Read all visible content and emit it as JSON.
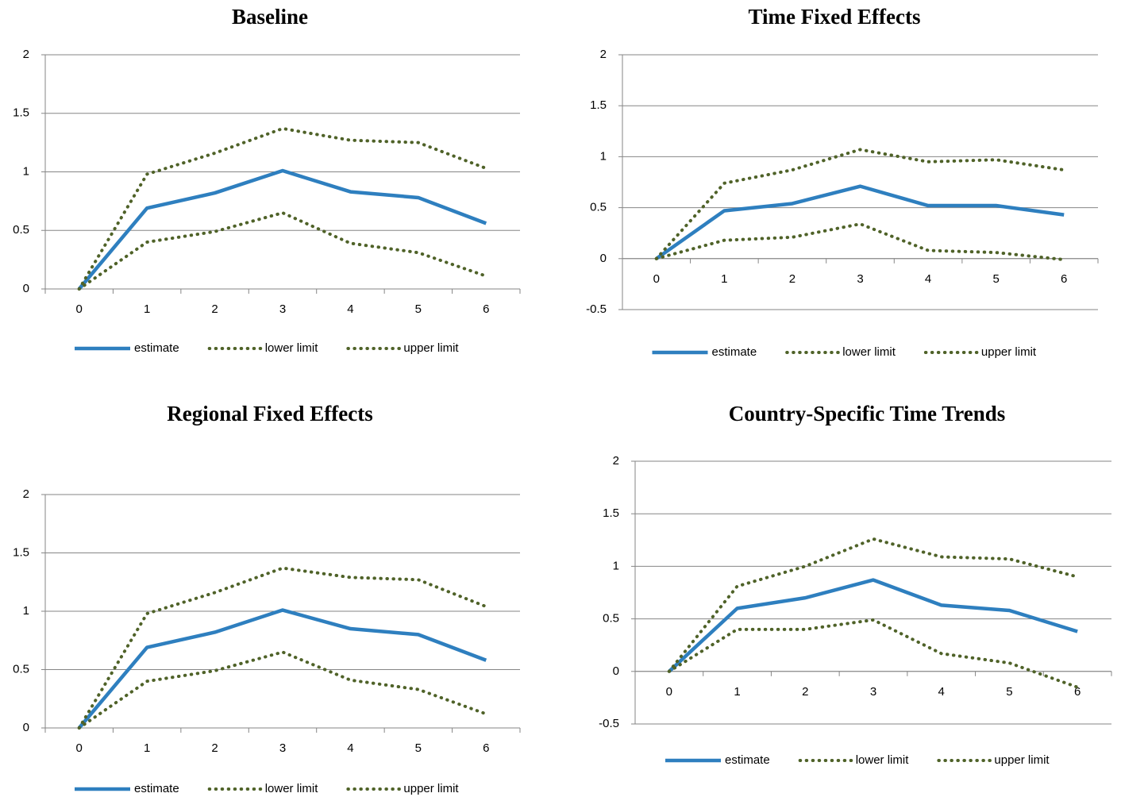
{
  "chart_data": [
    {
      "type": "line",
      "title": "Baseline",
      "categories": [
        "0",
        "1",
        "2",
        "3",
        "4",
        "5",
        "6"
      ],
      "series": [
        {
          "name": "estimate",
          "color": "#2e7fbf",
          "style": "solid",
          "values": [
            0,
            0.69,
            0.82,
            1.01,
            0.83,
            0.78,
            0.56
          ]
        },
        {
          "name": "lower limit",
          "color": "#4f6228",
          "style": "dotted",
          "values": [
            0,
            0.4,
            0.49,
            0.65,
            0.39,
            0.31,
            0.11
          ]
        },
        {
          "name": "upper limit",
          "color": "#4f6228",
          "style": "dotted",
          "values": [
            0,
            0.98,
            1.16,
            1.37,
            1.27,
            1.25,
            1.03
          ]
        }
      ],
      "ylim": [
        0,
        2
      ],
      "yticks": [
        0,
        0.5,
        1,
        1.5,
        2
      ],
      "grid": true,
      "legend": "bottom"
    },
    {
      "type": "line",
      "title": "Time Fixed Effects",
      "categories": [
        "0",
        "1",
        "2",
        "3",
        "4",
        "5",
        "6"
      ],
      "series": [
        {
          "name": "estimate",
          "color": "#2e7fbf",
          "style": "solid",
          "values": [
            0,
            0.47,
            0.54,
            0.71,
            0.52,
            0.52,
            0.43
          ]
        },
        {
          "name": "lower limit",
          "color": "#4f6228",
          "style": "dotted",
          "values": [
            0,
            0.18,
            0.21,
            0.34,
            0.08,
            0.06,
            -0.01
          ]
        },
        {
          "name": "upper limit",
          "color": "#4f6228",
          "style": "dotted",
          "values": [
            0,
            0.74,
            0.87,
            1.07,
            0.95,
            0.97,
            0.87
          ]
        }
      ],
      "ylim": [
        -0.5,
        2
      ],
      "yticks": [
        -0.5,
        0,
        0.5,
        1,
        1.5,
        2
      ],
      "grid": true,
      "legend": "bottom"
    },
    {
      "type": "line",
      "title": "Regional Fixed Effects",
      "categories": [
        "0",
        "1",
        "2",
        "3",
        "4",
        "5",
        "6"
      ],
      "series": [
        {
          "name": "estimate",
          "color": "#2e7fbf",
          "style": "solid",
          "values": [
            0,
            0.69,
            0.82,
            1.01,
            0.85,
            0.8,
            0.58
          ]
        },
        {
          "name": "lower limit",
          "color": "#4f6228",
          "style": "dotted",
          "values": [
            0,
            0.4,
            0.49,
            0.65,
            0.41,
            0.33,
            0.12
          ]
        },
        {
          "name": "upper limit",
          "color": "#4f6228",
          "style": "dotted",
          "values": [
            0,
            0.98,
            1.16,
            1.37,
            1.29,
            1.27,
            1.04
          ]
        }
      ],
      "ylim": [
        0,
        2
      ],
      "yticks": [
        0,
        0.5,
        1,
        1.5,
        2
      ],
      "grid": true,
      "legend": "bottom"
    },
    {
      "type": "line",
      "title": "Country-Specific Time Trends",
      "categories": [
        "0",
        "1",
        "2",
        "3",
        "4",
        "5",
        "6"
      ],
      "series": [
        {
          "name": "estimate",
          "color": "#2e7fbf",
          "style": "solid",
          "values": [
            0,
            0.6,
            0.7,
            0.87,
            0.63,
            0.58,
            0.38
          ]
        },
        {
          "name": "lower limit",
          "color": "#4f6228",
          "style": "dotted",
          "values": [
            0,
            0.4,
            0.4,
            0.49,
            0.17,
            0.08,
            -0.15
          ]
        },
        {
          "name": "upper limit",
          "color": "#4f6228",
          "style": "dotted",
          "values": [
            0,
            0.81,
            1.0,
            1.26,
            1.09,
            1.07,
            0.9
          ]
        }
      ],
      "ylim": [
        -0.5,
        2
      ],
      "yticks": [
        -0.5,
        0,
        0.5,
        1,
        1.5,
        2
      ],
      "grid": true,
      "legend": "bottom"
    }
  ]
}
